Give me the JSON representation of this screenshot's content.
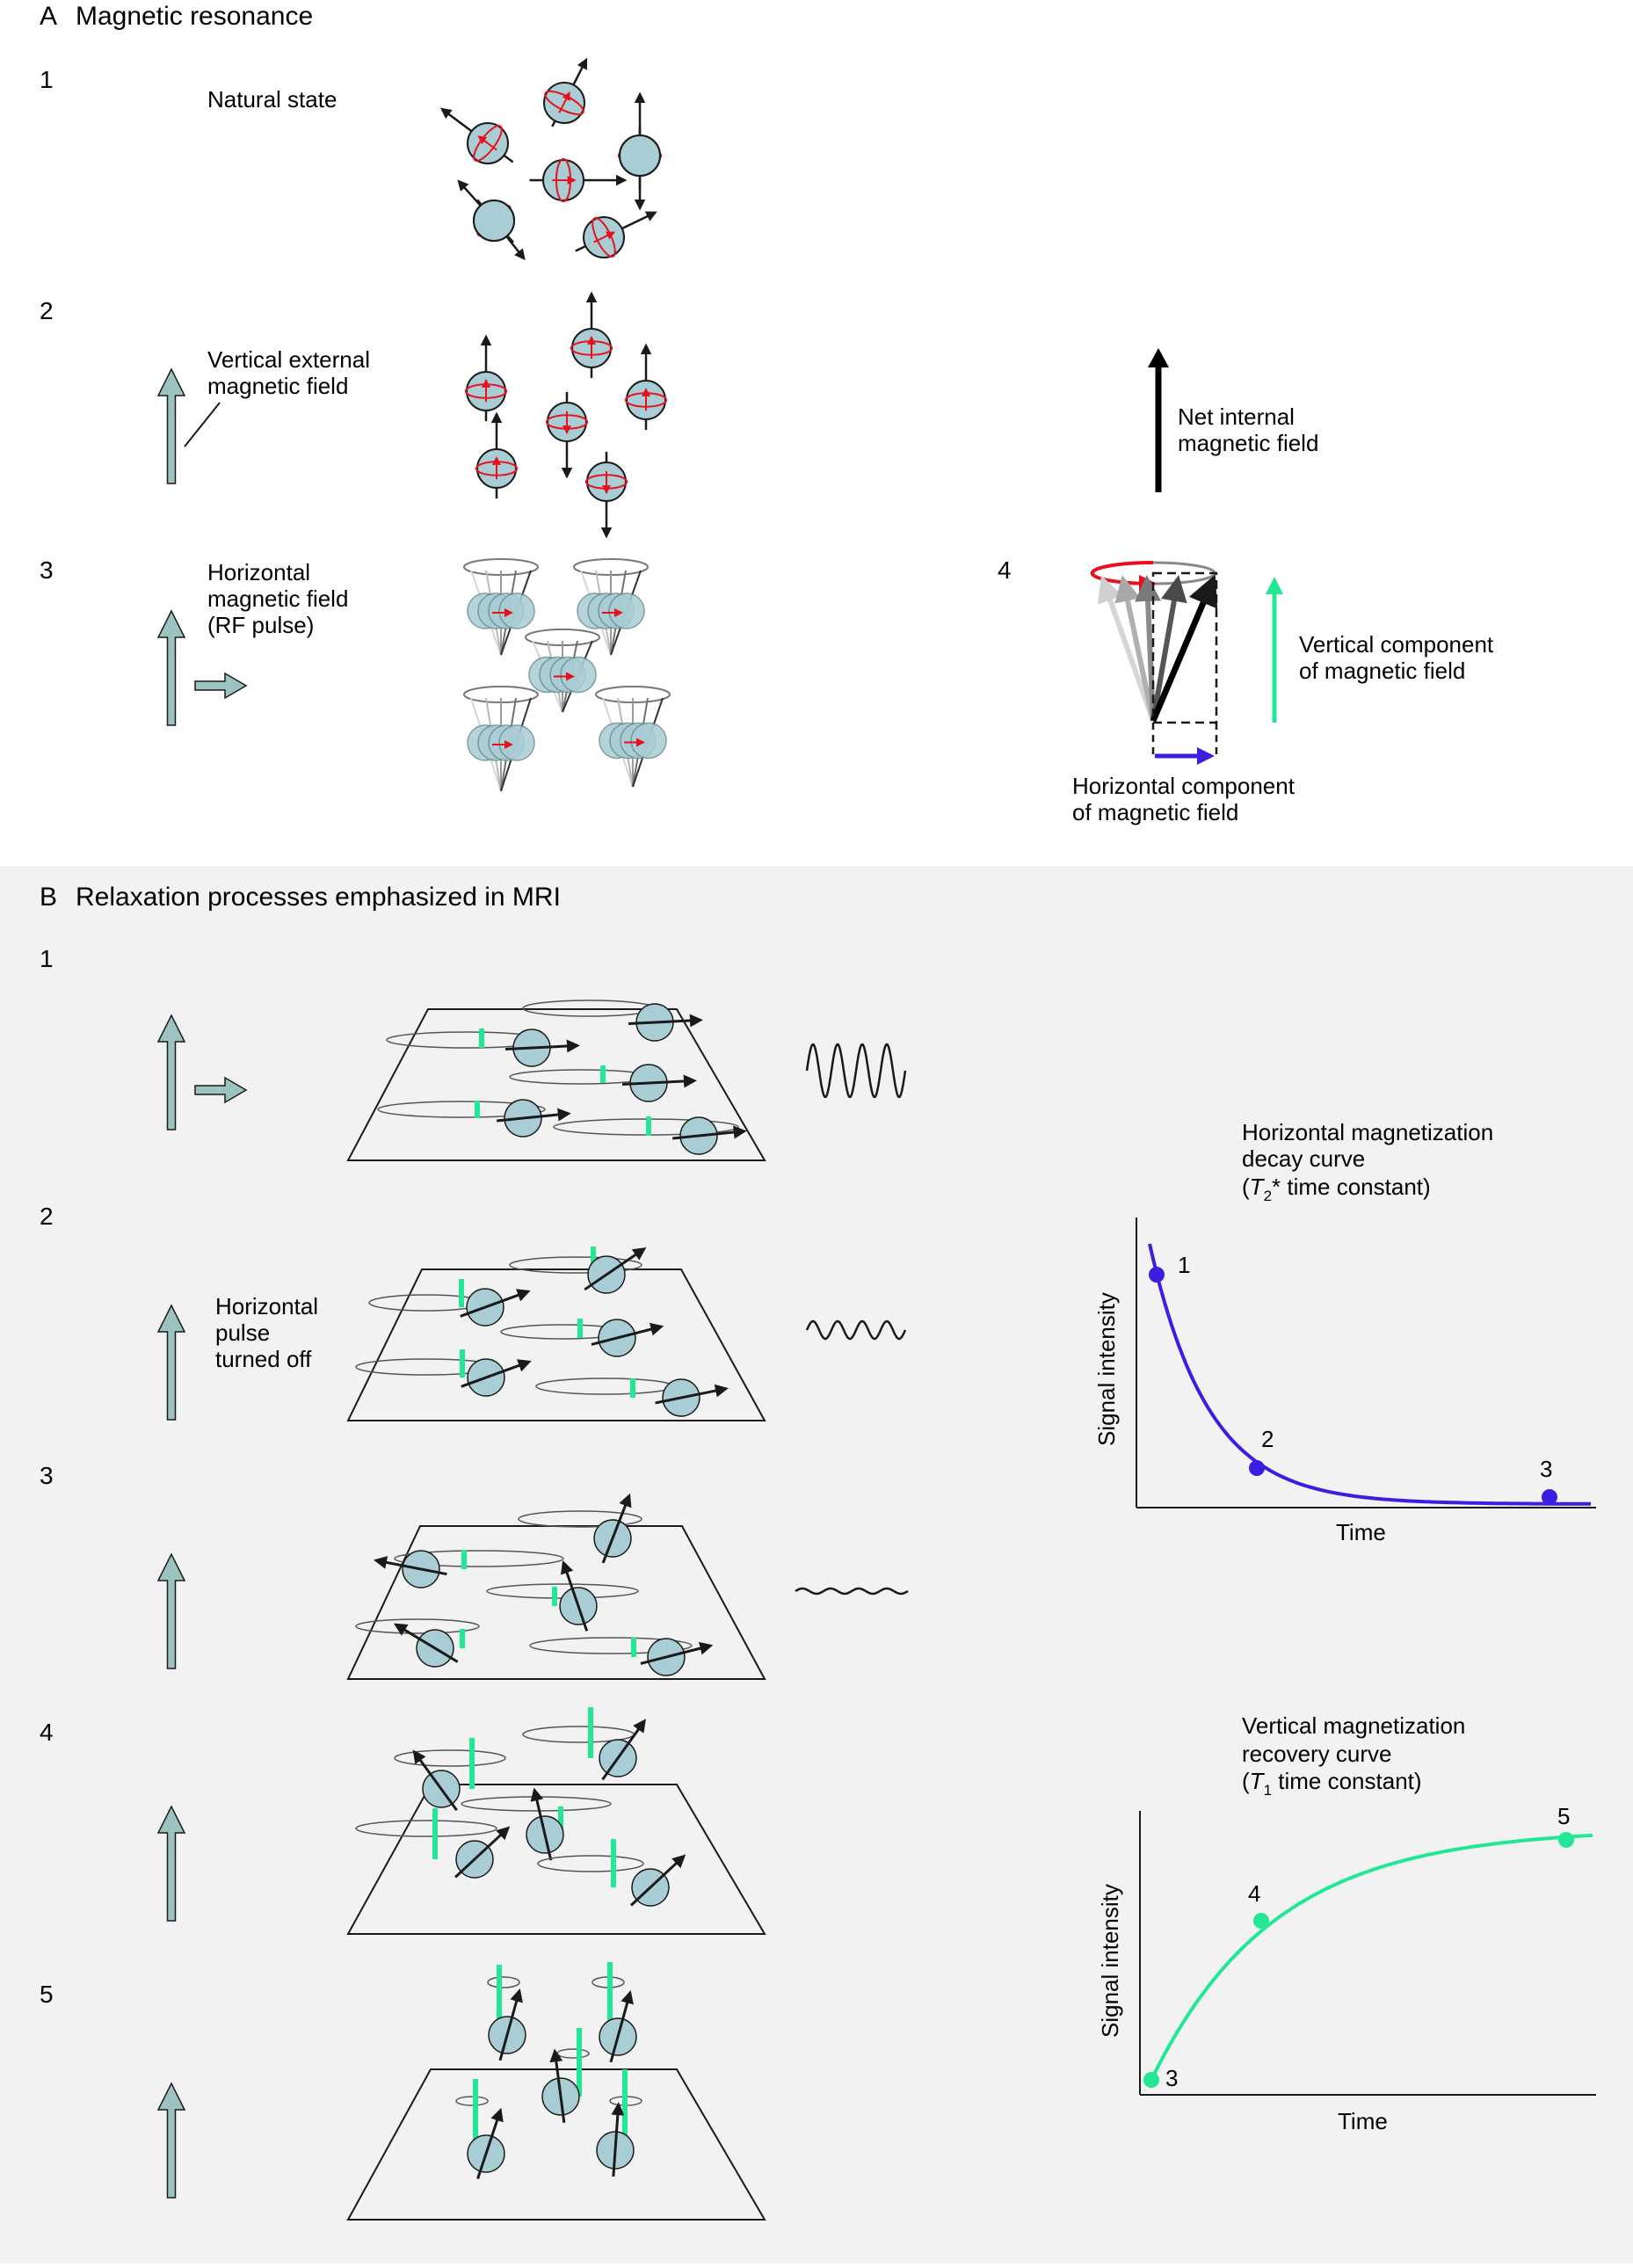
{
  "colors": {
    "spin_fill": "#a9cdd4",
    "spin_stroke": "#1a1a1a",
    "field_arrow_fill": "#9bc4c0",
    "rotation_red": "#e8101c",
    "vertical_green": "#22e896",
    "horizontal_blue": "#3b1fe0",
    "panel_b_bg": "#f2f2f2"
  },
  "panel_a": {
    "letter": "A",
    "title": "Magnetic resonance",
    "step1": {
      "num": "1",
      "caption": "Natural state"
    },
    "step2": {
      "num": "2",
      "caption_line1": "Vertical external",
      "caption_line2": "magnetic field",
      "net_line1": "Net internal",
      "net_line2": "magnetic field"
    },
    "step3": {
      "num": "3",
      "caption_line1": "Horizontal",
      "caption_line2": "magnetic field",
      "caption_line3": "(RF pulse)"
    },
    "step4": {
      "num": "4",
      "vertical_line1": "Vertical component",
      "vertical_line2": "of magnetic field",
      "horizontal_line1": "Horizontal component",
      "horizontal_line2": "of magnetic field"
    }
  },
  "panel_b": {
    "letter": "B",
    "title": "Relaxation processes emphasized in MRI",
    "step_nums": [
      "1",
      "2",
      "3",
      "4",
      "5"
    ],
    "step2_caption_line1": "Horizontal",
    "step2_caption_line2": "pulse",
    "step2_caption_line3": "turned off",
    "decay_chart": {
      "title_line1": "Horizontal magnetization",
      "title_line2": "decay curve",
      "title_line3_pre": "(",
      "title_line3_T": "T",
      "title_line3_sub": "2",
      "title_line3_post": "* time constant)",
      "xlabel": "Time",
      "ylabel": "Signal intensity",
      "point_labels": [
        "1",
        "2",
        "3"
      ]
    },
    "recovery_chart": {
      "title_line1": "Vertical magnetization",
      "title_line2": "recovery curve",
      "title_line3_pre": "(",
      "title_line3_T": "T",
      "title_line3_sub": "1",
      "title_line3_post": " time constant)",
      "xlabel": "Time",
      "ylabel": "Signal intensity",
      "point_labels": [
        "3",
        "4",
        "5"
      ]
    }
  }
}
